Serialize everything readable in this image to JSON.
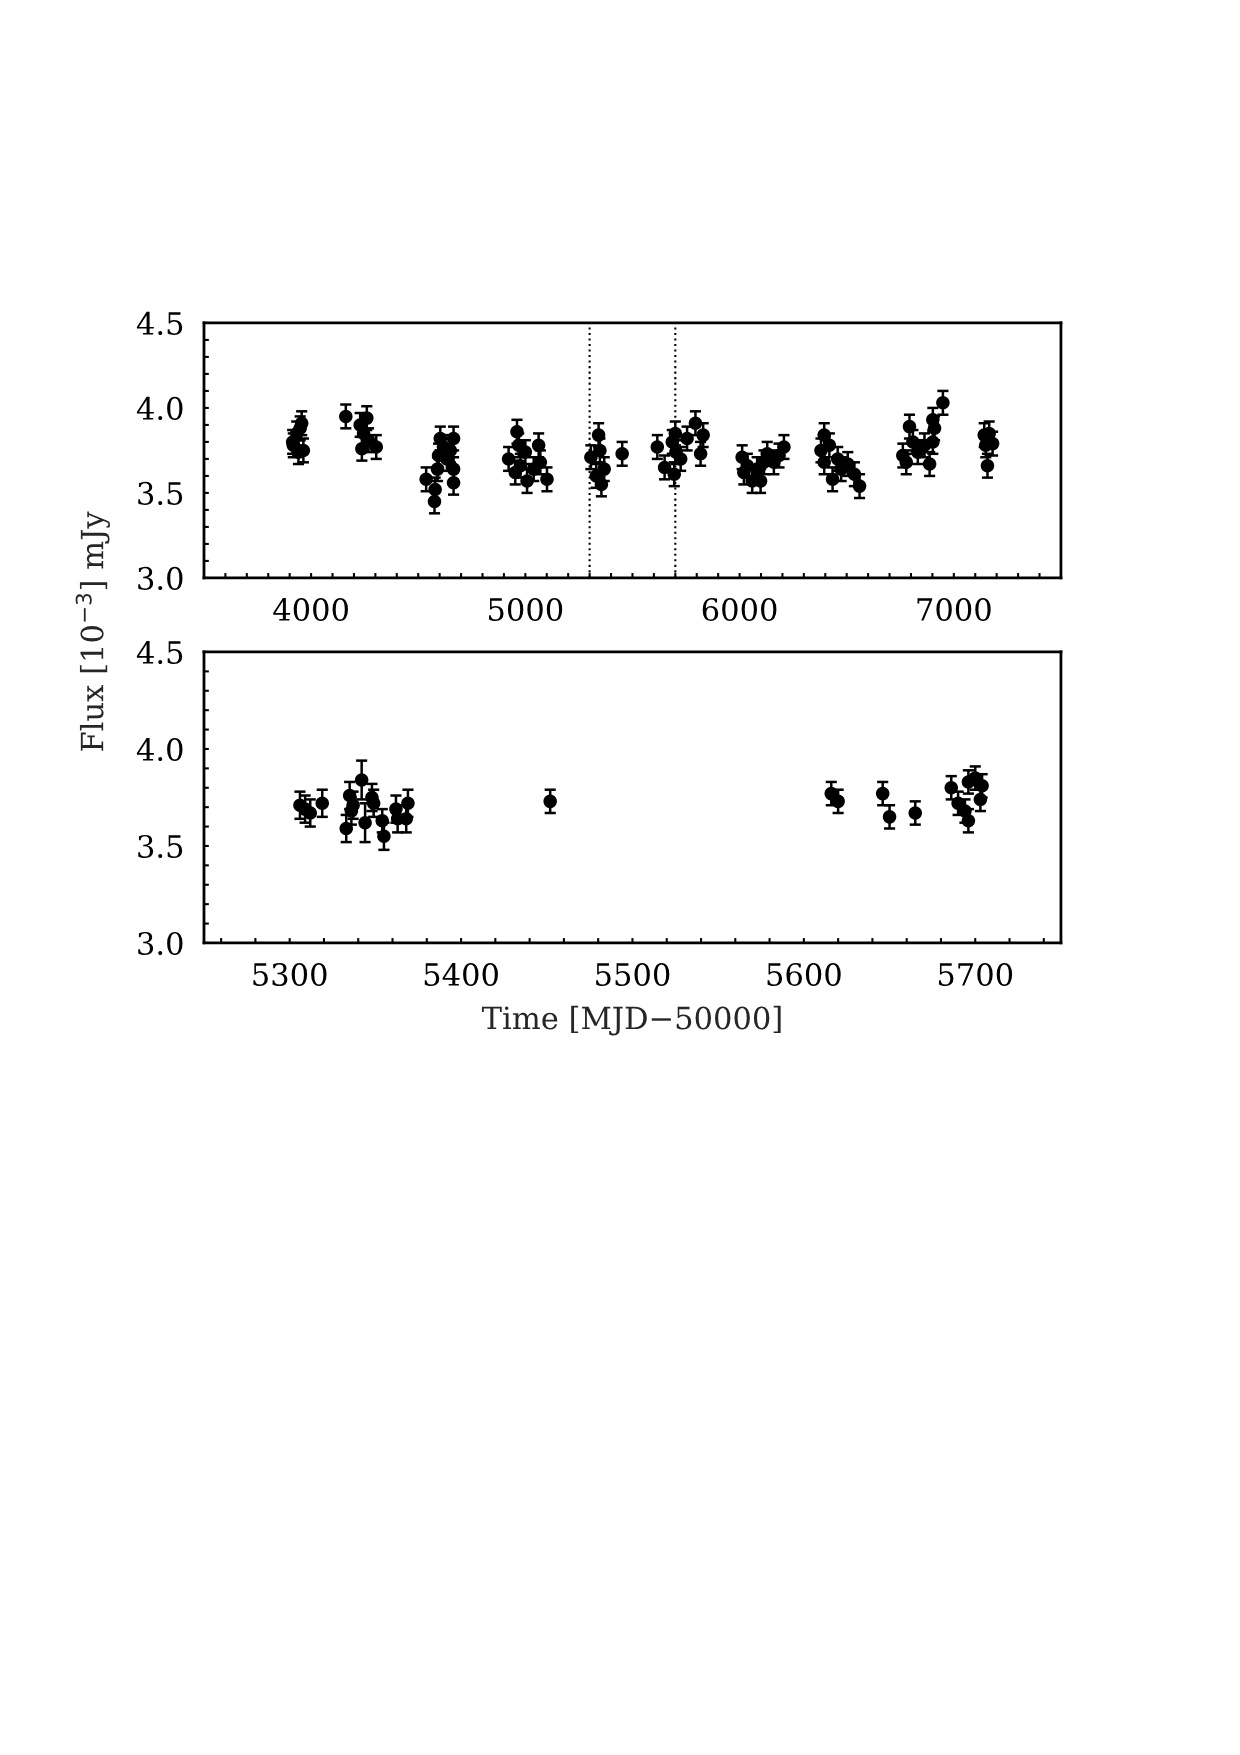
{
  "chart_data": [
    {
      "type": "scatter",
      "ylabel": "Flux [10$^{−3}$] mJy",
      "marker": "circle",
      "grid": false,
      "legend": false,
      "xlim": [
        3500,
        7500
      ],
      "ylim": [
        3.0,
        4.5
      ],
      "xticks": [
        {
          "value": 3600,
          "label": null
        },
        {
          "value": 3700,
          "label": null
        },
        {
          "value": 3800,
          "label": null
        },
        {
          "value": 3900,
          "label": null
        },
        4000,
        {
          "value": 4100,
          "label": null
        },
        {
          "value": 4200,
          "label": null
        },
        {
          "value": 4300,
          "label": null
        },
        {
          "value": 4400,
          "label": null
        },
        {
          "value": 4500,
          "label": null
        },
        {
          "value": 4600,
          "label": null
        },
        {
          "value": 4700,
          "label": null
        },
        {
          "value": 4800,
          "label": null
        },
        {
          "value": 4900,
          "label": null
        },
        5000,
        {
          "value": 5100,
          "label": null
        },
        {
          "value": 5200,
          "label": null
        },
        {
          "value": 5300,
          "label": null
        },
        {
          "value": 5400,
          "label": null
        },
        {
          "value": 5500,
          "label": null
        },
        {
          "value": 5600,
          "label": null
        },
        {
          "value": 5700,
          "label": null
        },
        {
          "value": 5800,
          "label": null
        },
        {
          "value": 5900,
          "label": null
        },
        6000,
        {
          "value": 6100,
          "label": null
        },
        {
          "value": 6200,
          "label": null
        },
        {
          "value": 6300,
          "label": null
        },
        {
          "value": 6400,
          "label": null
        },
        {
          "value": 6500,
          "label": null
        },
        {
          "value": 6600,
          "label": null
        },
        {
          "value": 6700,
          "label": null
        },
        {
          "value": 6800,
          "label": null
        },
        {
          "value": 6900,
          "label": null
        },
        7000,
        {
          "value": 7100,
          "label": null
        },
        {
          "value": 7200,
          "label": null
        },
        {
          "value": 7300,
          "label": null
        },
        {
          "value": 7400,
          "label": null
        }
      ],
      "yticks": [
        {
          "value": 3.0,
          "label": "3.0"
        },
        {
          "value": 3.1,
          "label": null
        },
        {
          "value": 3.2,
          "label": null
        },
        {
          "value": 3.3,
          "label": null
        },
        {
          "value": 3.4,
          "label": null
        },
        {
          "value": 3.5,
          "label": "3.5"
        },
        {
          "value": 3.6,
          "label": null
        },
        {
          "value": 3.7,
          "label": null
        },
        {
          "value": 3.8,
          "label": null
        },
        {
          "value": 3.9,
          "label": null
        },
        {
          "value": 4.0,
          "label": "4.0"
        },
        {
          "value": 4.1,
          "label": null
        },
        {
          "value": 4.2,
          "label": null
        },
        {
          "value": 4.3,
          "label": null
        },
        {
          "value": 4.4,
          "label": null
        },
        {
          "value": 4.5,
          "label": "4.5"
        }
      ],
      "ref_lines": [
        {
          "axis": "x",
          "value": 5300,
          "line_style": "dotted",
          "color": "#000000"
        },
        {
          "axis": "x",
          "value": 5700,
          "line_style": "dotted",
          "color": "#000000"
        }
      ],
      "series": [
        {
          "color": "#000000",
          "x": [
            3914,
            3917,
            3933,
            3941,
            3949,
            3956,
            3964,
            4162,
            4229,
            4237,
            4245,
            4260,
            4268,
            4304,
            4537,
            4576,
            4579,
            4590,
            4595,
            4603,
            4618,
            4634,
            4650,
            4665,
            4665,
            4665,
            4922,
            4953,
            4961,
            4969,
            4977,
            5000,
            5008,
            5039,
            5062,
            5070,
            5101,
            5306,
            5331,
            5342,
            5348,
            5355,
            5368,
            5452,
            5616,
            5650,
            5686,
            5695,
            5700,
            5703,
            5725,
            5755,
            5794,
            5818,
            5830,
            6012,
            6020,
            6036,
            6059,
            6082,
            6098,
            6114,
            6129,
            6160,
            6184,
            6207,
            6380,
            6395,
            6395,
            6419,
            6434,
            6458,
            6474,
            6505,
            6536,
            6560,
            6762,
            6778,
            6793,
            6809,
            6832,
            6863,
            6887,
            6902,
            6902,
            6910,
            6949,
            7142,
            7149,
            7157,
            7165,
            7181
          ],
          "values": [
            3.8,
            3.78,
            3.85,
            3.74,
            3.88,
            3.91,
            3.75,
            3.95,
            3.9,
            3.76,
            3.85,
            3.94,
            3.81,
            3.77,
            3.58,
            3.45,
            3.52,
            3.64,
            3.72,
            3.82,
            3.77,
            3.7,
            3.75,
            3.82,
            3.64,
            3.56,
            3.7,
            3.62,
            3.86,
            3.78,
            3.66,
            3.74,
            3.57,
            3.64,
            3.78,
            3.68,
            3.58,
            3.71,
            3.6,
            3.84,
            3.75,
            3.55,
            3.64,
            3.73,
            3.77,
            3.65,
            3.8,
            3.61,
            3.85,
            3.74,
            3.7,
            3.82,
            3.91,
            3.73,
            3.84,
            3.71,
            3.62,
            3.66,
            3.57,
            3.64,
            3.57,
            3.68,
            3.73,
            3.68,
            3.72,
            3.77,
            3.75,
            3.84,
            3.68,
            3.78,
            3.58,
            3.7,
            3.64,
            3.67,
            3.61,
            3.54,
            3.72,
            3.68,
            3.89,
            3.8,
            3.74,
            3.78,
            3.67,
            3.93,
            3.8,
            3.88,
            4.03,
            3.84,
            3.78,
            3.66,
            3.85,
            3.79
          ],
          "errors": [
            0.07,
            0.07,
            0.07,
            0.07,
            0.07,
            0.07,
            0.07,
            0.07,
            0.07,
            0.07,
            0.07,
            0.07,
            0.07,
            0.07,
            0.07,
            0.07,
            0.07,
            0.07,
            0.07,
            0.07,
            0.07,
            0.07,
            0.07,
            0.07,
            0.07,
            0.07,
            0.07,
            0.07,
            0.07,
            0.07,
            0.07,
            0.07,
            0.07,
            0.07,
            0.07,
            0.07,
            0.07,
            0.07,
            0.07,
            0.07,
            0.07,
            0.07,
            0.07,
            0.07,
            0.07,
            0.07,
            0.07,
            0.07,
            0.07,
            0.07,
            0.07,
            0.07,
            0.07,
            0.07,
            0.07,
            0.07,
            0.07,
            0.07,
            0.07,
            0.07,
            0.07,
            0.07,
            0.07,
            0.07,
            0.07,
            0.07,
            0.07,
            0.07,
            0.07,
            0.07,
            0.07,
            0.07,
            0.07,
            0.07,
            0.07,
            0.07,
            0.07,
            0.07,
            0.07,
            0.07,
            0.07,
            0.07,
            0.07,
            0.07,
            0.07,
            0.07,
            0.07,
            0.07,
            0.07,
            0.07,
            0.07,
            0.07
          ]
        }
      ]
    },
    {
      "type": "scatter",
      "xlabel": "Time [MJD−50000]",
      "marker": "circle",
      "grid": false,
      "legend": false,
      "xlim": [
        5250,
        5750
      ],
      "ylim": [
        3.0,
        4.5
      ],
      "xticks": [
        {
          "value": 5260,
          "label": null
        },
        {
          "value": 5280,
          "label": null
        },
        5300,
        {
          "value": 5320,
          "label": null
        },
        {
          "value": 5340,
          "label": null
        },
        {
          "value": 5360,
          "label": null
        },
        {
          "value": 5380,
          "label": null
        },
        5400,
        {
          "value": 5420,
          "label": null
        },
        {
          "value": 5440,
          "label": null
        },
        {
          "value": 5460,
          "label": null
        },
        {
          "value": 5480,
          "label": null
        },
        5500,
        {
          "value": 5520,
          "label": null
        },
        {
          "value": 5540,
          "label": null
        },
        {
          "value": 5560,
          "label": null
        },
        {
          "value": 5580,
          "label": null
        },
        5600,
        {
          "value": 5620,
          "label": null
        },
        {
          "value": 5640,
          "label": null
        },
        {
          "value": 5660,
          "label": null
        },
        {
          "value": 5680,
          "label": null
        },
        5700,
        {
          "value": 5720,
          "label": null
        },
        {
          "value": 5740,
          "label": null
        }
      ],
      "yticks": [
        {
          "value": 3.0,
          "label": "3.0"
        },
        {
          "value": 3.1,
          "label": null
        },
        {
          "value": 3.2,
          "label": null
        },
        {
          "value": 3.3,
          "label": null
        },
        {
          "value": 3.4,
          "label": null
        },
        {
          "value": 3.5,
          "label": "3.5"
        },
        {
          "value": 3.6,
          "label": null
        },
        {
          "value": 3.7,
          "label": null
        },
        {
          "value": 3.8,
          "label": null
        },
        {
          "value": 3.9,
          "label": null
        },
        {
          "value": 4.0,
          "label": "4.0"
        },
        {
          "value": 4.1,
          "label": null
        },
        {
          "value": 4.2,
          "label": null
        },
        {
          "value": 4.3,
          "label": null
        },
        {
          "value": 4.4,
          "label": null
        },
        {
          "value": 4.5,
          "label": "4.5"
        }
      ],
      "series": [
        {
          "color": "#000000",
          "x": [
            5306,
            5309,
            5312,
            5319,
            5333,
            5335,
            5336,
            5337,
            5342,
            5344,
            5348,
            5349,
            5354,
            5355,
            5362,
            5363,
            5368,
            5369,
            5452,
            5616,
            5620,
            5646,
            5650,
            5665,
            5686,
            5690,
            5694,
            5696,
            5696,
            5700,
            5703,
            5704
          ],
          "values": [
            3.71,
            3.69,
            3.67,
            3.72,
            3.59,
            3.76,
            3.68,
            3.71,
            3.84,
            3.62,
            3.75,
            3.72,
            3.63,
            3.55,
            3.69,
            3.64,
            3.64,
            3.72,
            3.73,
            3.77,
            3.73,
            3.77,
            3.65,
            3.67,
            3.8,
            3.72,
            3.68,
            3.63,
            3.83,
            3.85,
            3.74,
            3.81
          ],
          "errors": [
            0.07,
            0.07,
            0.07,
            0.07,
            0.07,
            0.07,
            0.07,
            0.07,
            0.1,
            0.1,
            0.07,
            0.07,
            0.06,
            0.07,
            0.07,
            0.07,
            0.07,
            0.07,
            0.06,
            0.06,
            0.06,
            0.06,
            0.06,
            0.06,
            0.06,
            0.06,
            0.06,
            0.06,
            0.06,
            0.06,
            0.06,
            0.06
          ]
        }
      ]
    }
  ]
}
